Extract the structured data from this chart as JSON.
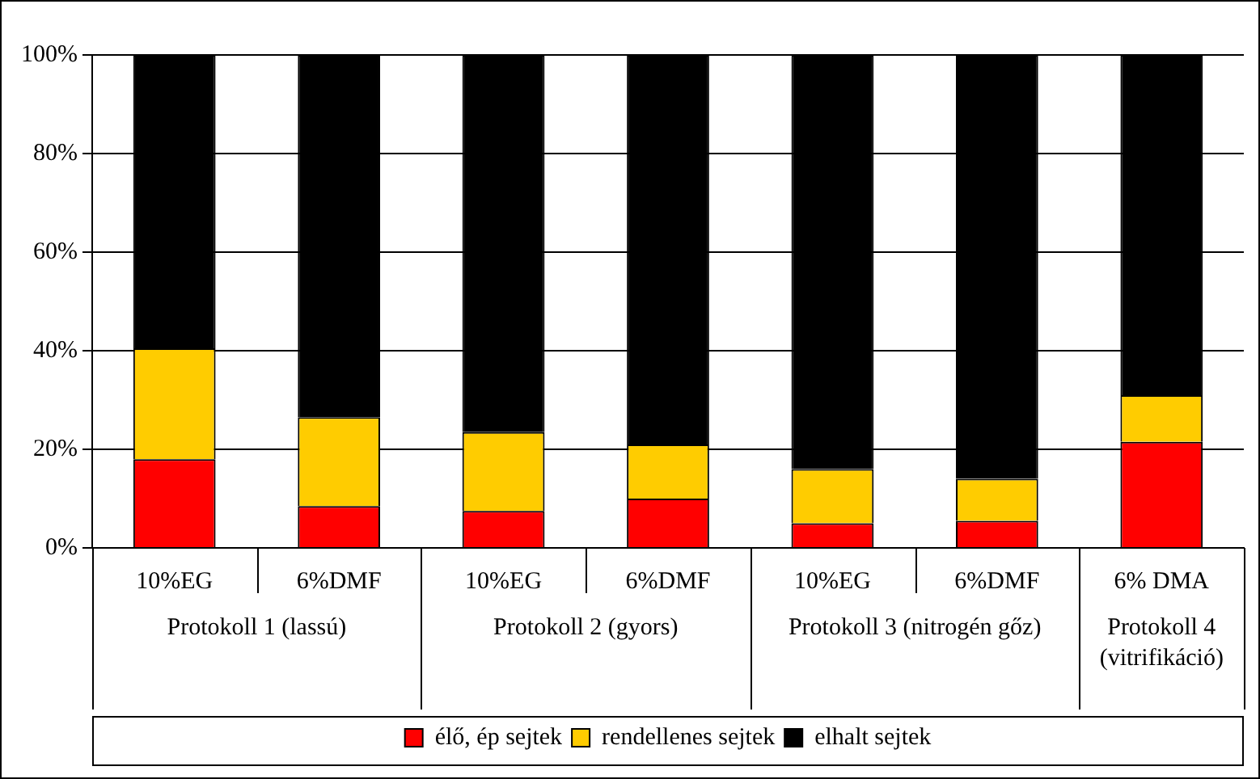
{
  "chart_data": {
    "type": "bar",
    "stacked": true,
    "categories": [
      "10%EG",
      "6%DMF",
      "10%EG",
      "6%DMF",
      "10%EG",
      "6%DMF",
      "6% DMA"
    ],
    "series": [
      {
        "name": "élő, ép sejtek",
        "color": "#ff0000",
        "values": [
          18,
          8.5,
          7.5,
          10,
          5,
          5.5,
          21.5
        ]
      },
      {
        "name": "rendellenes sejtek",
        "color": "#ffcc00",
        "values": [
          22.5,
          18,
          16,
          11,
          11,
          8.5,
          9.5
        ]
      },
      {
        "name": "elhalt sejtek",
        "color": "#000000",
        "values": [
          59.5,
          73.5,
          76.5,
          79,
          84,
          86,
          69
        ]
      }
    ],
    "ylim": [
      0,
      100
    ],
    "yticks": [
      {
        "value": 0,
        "label": "0%"
      },
      {
        "value": 20,
        "label": "20%"
      },
      {
        "value": 40,
        "label": "40%"
      },
      {
        "value": 60,
        "label": "60%"
      },
      {
        "value": 80,
        "label": "80%"
      },
      {
        "value": 100,
        "label": "100%"
      }
    ],
    "grid": "y",
    "legend": "bottom",
    "annotations": [
      "Protokoll 1 (lassú)",
      "Protokoll 2 (gyors)",
      "Protokoll 3 (nitrogén gőz)",
      "Protokoll 4 (vitrifikáció)"
    ]
  }
}
